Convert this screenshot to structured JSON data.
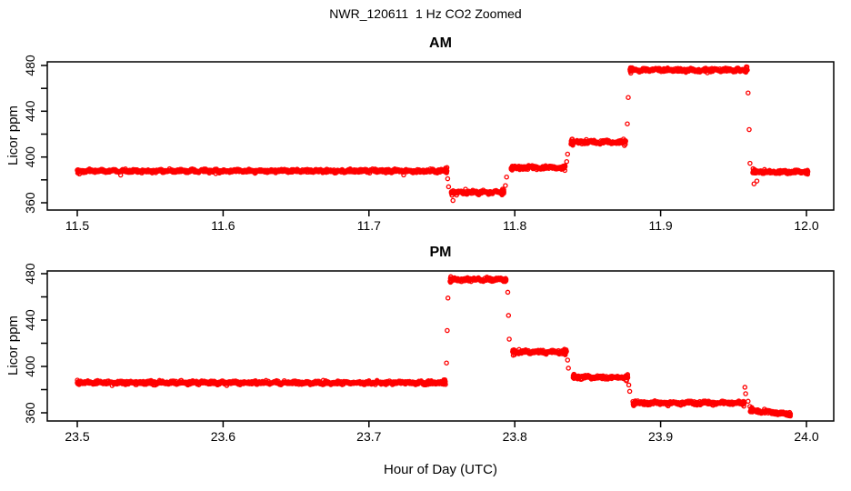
{
  "main_title": "NWR_120611  1 Hz CO2 Zoomed",
  "xlabel": "Hour of Day (UTC)",
  "colors": {
    "points": "#FF0000",
    "axis": "#000000",
    "text": "#000000",
    "background": "#FFFFFF"
  },
  "chart_data": [
    {
      "type": "scatter",
      "panel": "AM",
      "title": "AM",
      "ylabel": "Licor ppm",
      "marker": "open-circle",
      "point_color": "#FF0000",
      "grid": false,
      "legend": "none",
      "xlim": [
        11.479,
        12.019
      ],
      "ylim": [
        354,
        483
      ],
      "xticks": [
        11.5,
        11.6,
        11.7,
        11.8,
        11.9,
        12.0
      ],
      "xtick_labels": [
        "11.5",
        "11.6",
        "11.7",
        "11.8",
        "11.9",
        "12.0"
      ],
      "yticks": [
        360,
        380,
        400,
        420,
        440,
        460,
        480
      ],
      "ytick_labels": [
        "360",
        "",
        "400",
        "",
        "440",
        "",
        "480"
      ],
      "segments": [
        {
          "x_start": 11.5,
          "x_end": 11.7535,
          "value": 387.8
        },
        {
          "x_start": 11.7565,
          "x_end": 11.7925,
          "value": 369
        },
        {
          "x_start": 11.7975,
          "x_end": 11.8345,
          "value": 390.8
        },
        {
          "x_start": 11.8385,
          "x_end": 11.876,
          "value": 413
        },
        {
          "x_start": 11.879,
          "x_end": 11.9595,
          "value": 476
        },
        {
          "x_start": 11.9632,
          "x_end": 12.001,
          "value": 387
        }
      ],
      "transition_points": [
        {
          "x": 11.754,
          "y": 381
        },
        {
          "x": 11.7546,
          "y": 374
        },
        {
          "x": 11.7576,
          "y": 362
        },
        {
          "x": 11.7936,
          "y": 375
        },
        {
          "x": 11.7944,
          "y": 382.5
        },
        {
          "x": 11.8356,
          "y": 396
        },
        {
          "x": 11.8362,
          "y": 402.5
        },
        {
          "x": 11.8772,
          "y": 429
        },
        {
          "x": 11.8778,
          "y": 452
        },
        {
          "x": 11.96,
          "y": 456
        },
        {
          "x": 11.9607,
          "y": 424
        },
        {
          "x": 11.9613,
          "y": 394.5
        },
        {
          "x": 11.964,
          "y": 376.5
        },
        {
          "x": 11.966,
          "y": 379
        }
      ]
    },
    {
      "type": "scatter",
      "panel": "PM",
      "title": "PM",
      "ylabel": "Licor ppm",
      "marker": "open-circle",
      "point_color": "#FF0000",
      "grid": false,
      "legend": "none",
      "xlim": [
        23.479,
        24.019
      ],
      "ylim": [
        353,
        482
      ],
      "xticks": [
        23.5,
        23.6,
        23.7,
        23.8,
        23.9,
        24.0
      ],
      "xtick_labels": [
        "23.5",
        "23.6",
        "23.7",
        "23.8",
        "23.9",
        "24.0"
      ],
      "yticks": [
        360,
        380,
        400,
        420,
        440,
        460,
        480
      ],
      "ytick_labels": [
        "360",
        "",
        "400",
        "",
        "440",
        "",
        "480"
      ],
      "segments": [
        {
          "x_start": 23.5,
          "x_end": 23.7525,
          "value": 386
        },
        {
          "x_start": 23.7556,
          "x_end": 23.794,
          "value": 475
        },
        {
          "x_start": 23.7985,
          "x_end": 23.8355,
          "value": 412.5
        },
        {
          "x_start": 23.84,
          "x_end": 23.8775,
          "value": 390.5
        },
        {
          "x_start": 23.881,
          "x_end": 23.9575,
          "value": 368.5
        },
        {
          "x_start": 23.9615,
          "x_end": 23.989,
          "value": 362,
          "value_end": 359
        }
      ],
      "transition_points": [
        {
          "x": 23.7532,
          "y": 403
        },
        {
          "x": 23.7537,
          "y": 431
        },
        {
          "x": 23.7542,
          "y": 459
        },
        {
          "x": 23.7952,
          "y": 464
        },
        {
          "x": 23.7957,
          "y": 444
        },
        {
          "x": 23.7962,
          "y": 423.5
        },
        {
          "x": 23.8362,
          "y": 405.5
        },
        {
          "x": 23.8368,
          "y": 398.5
        },
        {
          "x": 23.8782,
          "y": 384
        },
        {
          "x": 23.8788,
          "y": 378.5
        },
        {
          "x": 23.9578,
          "y": 382
        },
        {
          "x": 23.9583,
          "y": 376.5
        },
        {
          "x": 23.96,
          "y": 370
        },
        {
          "x": 23.9612,
          "y": 365.5
        }
      ]
    }
  ]
}
